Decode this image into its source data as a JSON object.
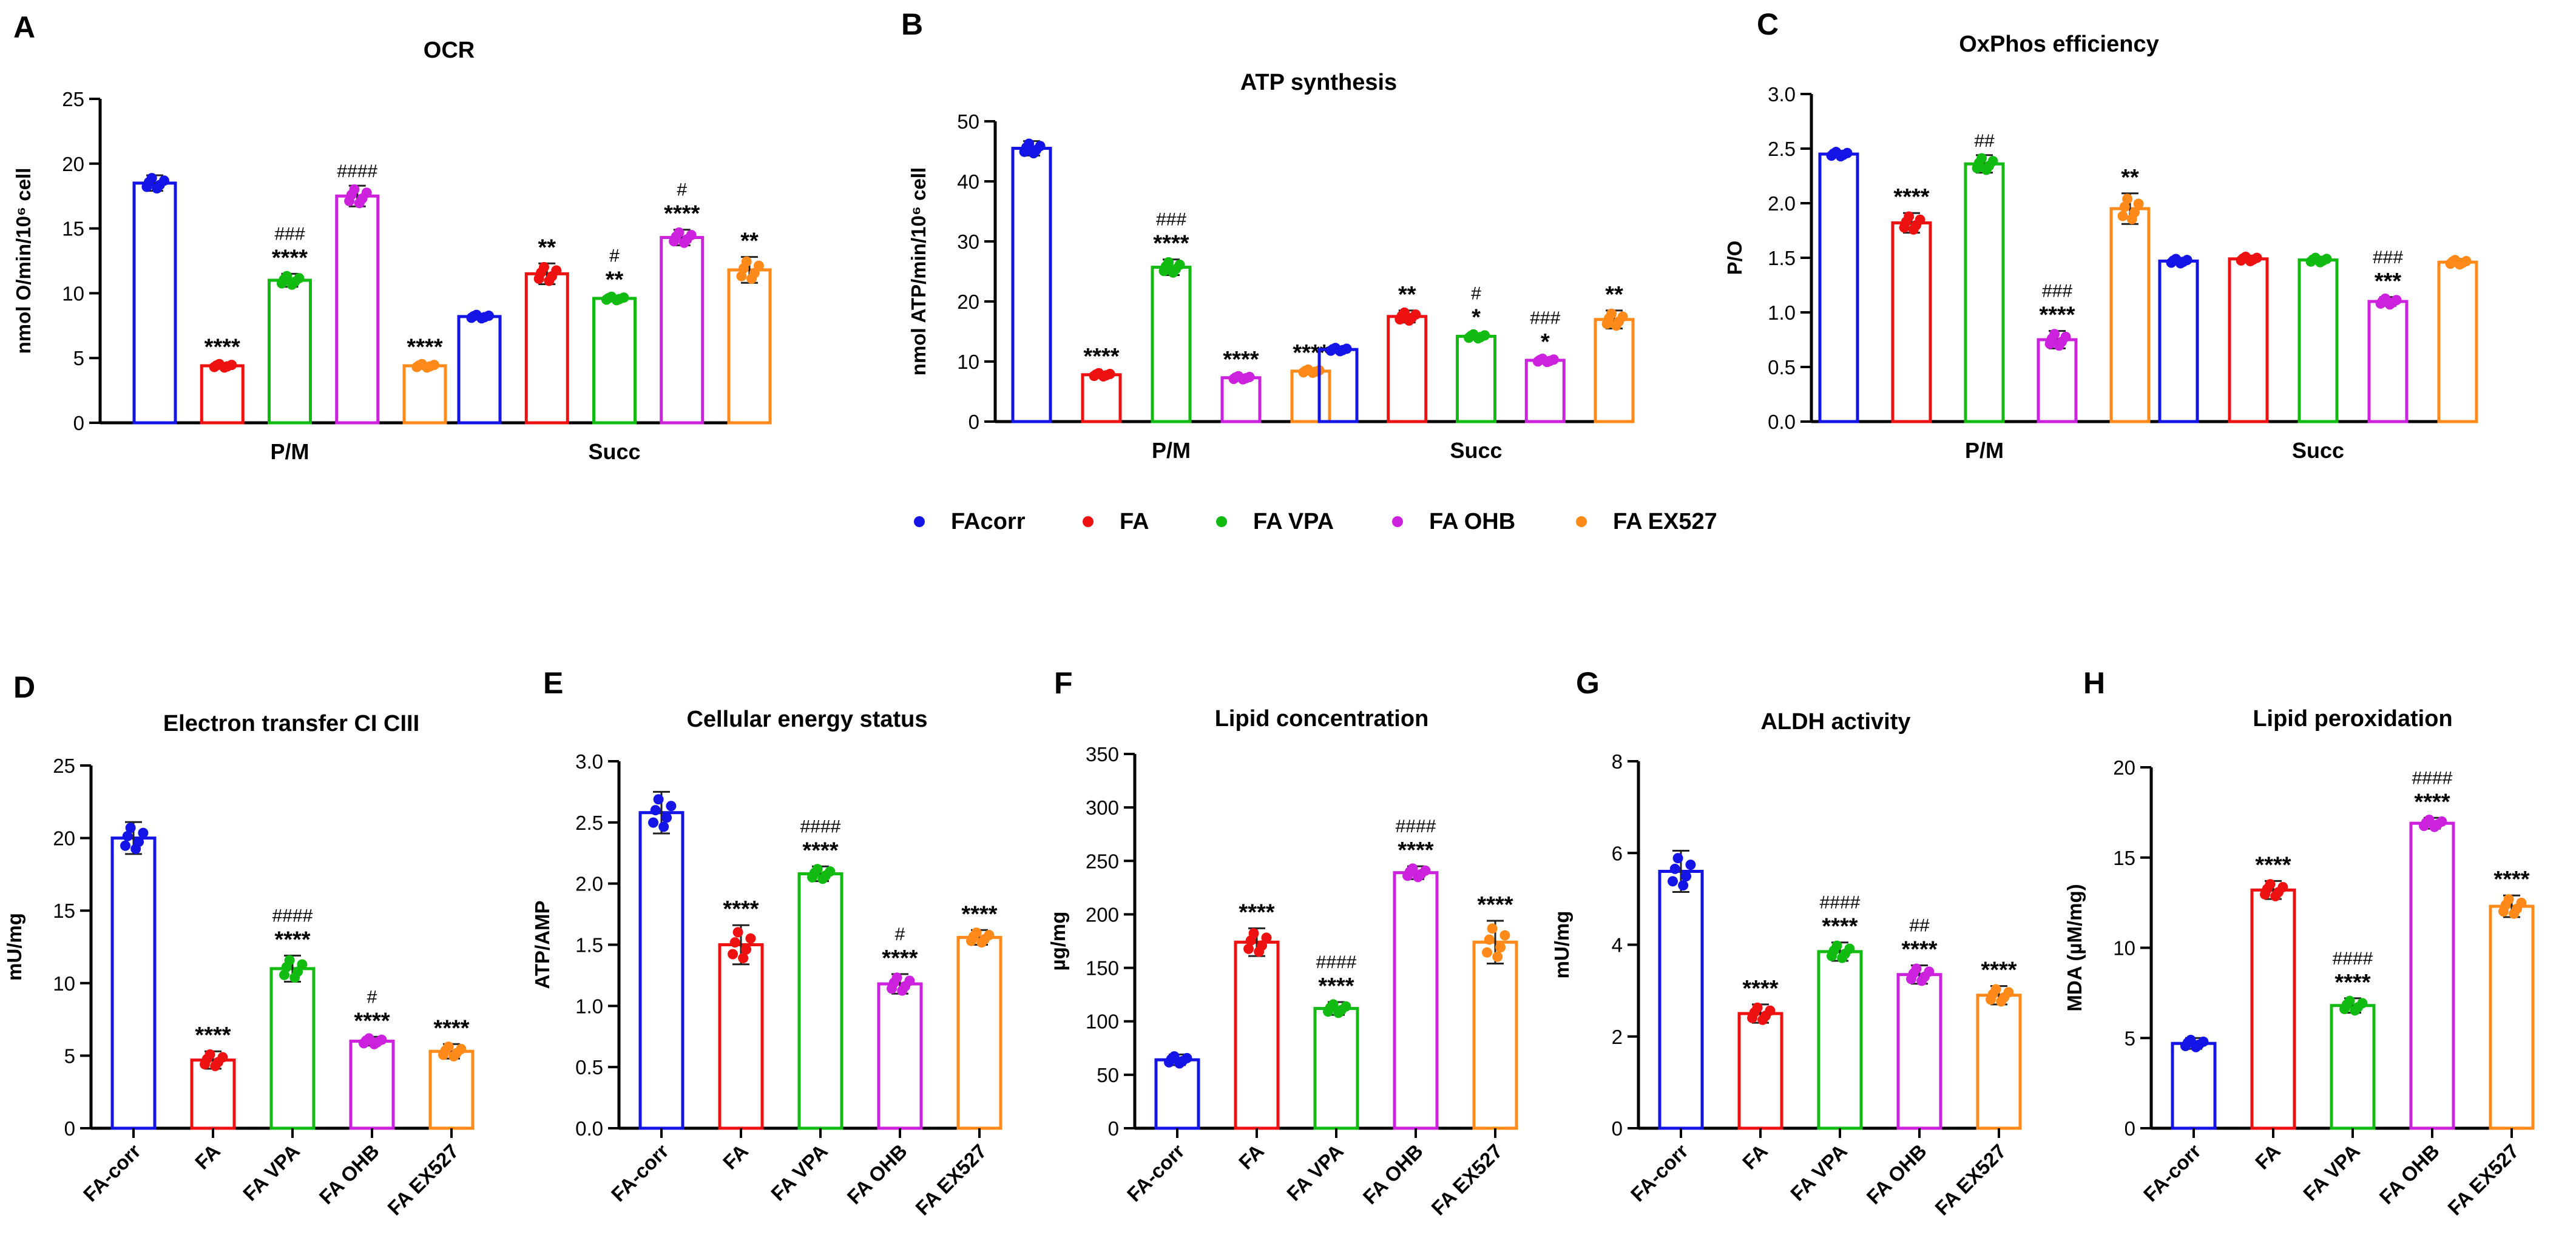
{
  "figure": {
    "legend": [
      {
        "name": "FAcorr",
        "color": "#1414e6"
      },
      {
        "name": "FA",
        "color": "#ee1111"
      },
      {
        "name": "FA VPA",
        "color": "#11bb11"
      },
      {
        "name": "FA OHB",
        "color": "#cc22dd"
      },
      {
        "name": "FA EX527",
        "color": "#ff8a1a"
      }
    ]
  },
  "chart_data": [
    {
      "panel": "A",
      "type": "bar",
      "title": "OCR",
      "ylabel": "nmol O/min/10⁶ cell",
      "ylim": [
        0,
        25
      ],
      "yticks": [
        0,
        5,
        10,
        15,
        20,
        25
      ],
      "categories": [
        "P/M",
        "Succ"
      ],
      "series": [
        {
          "name": "FAcorr",
          "values": [
            18.5,
            8.2
          ],
          "sd": [
            0.6,
            0.2
          ],
          "marks": [
            [
              "",
              ""
            ],
            [
              "",
              ""
            ]
          ]
        },
        {
          "name": "FA",
          "values": [
            4.4,
            11.5
          ],
          "sd": [
            0.2,
            0.8
          ],
          "marks": [
            [
              "****",
              ""
            ],
            [
              "**",
              ""
            ]
          ]
        },
        {
          "name": "FA VPA",
          "values": [
            11.0,
            9.6
          ],
          "sd": [
            0.5,
            0.2
          ],
          "marks": [
            [
              "****",
              "###"
            ],
            [
              "**",
              "#"
            ]
          ]
        },
        {
          "name": "FA OHB",
          "values": [
            17.5,
            14.3
          ],
          "sd": [
            0.8,
            0.6
          ],
          "marks": [
            [
              "",
              "####"
            ],
            [
              "****",
              "#"
            ]
          ]
        },
        {
          "name": "FA EX527",
          "values": [
            4.4,
            11.8
          ],
          "sd": [
            0.2,
            1.0
          ],
          "marks": [
            [
              "****",
              ""
            ],
            [
              "**",
              ""
            ]
          ]
        }
      ]
    },
    {
      "panel": "B",
      "type": "bar",
      "title": "ATP synthesis",
      "ylabel": "nmol ATP/min/10⁶ cell",
      "ylim": [
        0,
        50
      ],
      "yticks": [
        0,
        10,
        20,
        30,
        40,
        50
      ],
      "categories": [
        "P/M",
        "Succ"
      ],
      "series": [
        {
          "name": "FAcorr",
          "values": [
            45.5,
            12.0
          ],
          "sd": [
            1.2,
            0.4
          ],
          "marks": [
            [
              "",
              ""
            ],
            [
              "",
              ""
            ]
          ]
        },
        {
          "name": "FA",
          "values": [
            7.8,
            17.5
          ],
          "sd": [
            0.4,
            1.0
          ],
          "marks": [
            [
              "****",
              ""
            ],
            [
              "**",
              ""
            ]
          ]
        },
        {
          "name": "FA VPA",
          "values": [
            25.7,
            14.2
          ],
          "sd": [
            1.3,
            0.5
          ],
          "marks": [
            [
              "****",
              "###"
            ],
            [
              "*",
              "#"
            ]
          ]
        },
        {
          "name": "FA OHB",
          "values": [
            7.3,
            10.2
          ],
          "sd": [
            0.4,
            0.4
          ],
          "marks": [
            [
              "****",
              ""
            ],
            [
              "*",
              "###"
            ]
          ]
        },
        {
          "name": "FA EX527",
          "values": [
            8.4,
            17.0
          ],
          "sd": [
            0.4,
            1.5
          ],
          "marks": [
            [
              "****",
              ""
            ],
            [
              "**",
              ""
            ]
          ]
        }
      ]
    },
    {
      "panel": "C",
      "type": "bar",
      "title": "OxPhos efficiency",
      "ylabel": "P/O",
      "ylim": [
        0,
        3.0
      ],
      "yticks": [
        0.0,
        0.5,
        1.0,
        1.5,
        2.0,
        2.5,
        3.0
      ],
      "categories": [
        "P/M",
        "Succ"
      ],
      "series": [
        {
          "name": "FAcorr",
          "values": [
            2.45,
            1.47
          ],
          "sd": [
            0.03,
            0.03
          ],
          "marks": [
            [
              "",
              ""
            ],
            [
              "",
              ""
            ]
          ]
        },
        {
          "name": "FA",
          "values": [
            1.82,
            1.49
          ],
          "sd": [
            0.09,
            0.03
          ],
          "marks": [
            [
              "****",
              ""
            ],
            [
              "",
              ""
            ]
          ]
        },
        {
          "name": "FA VPA",
          "values": [
            2.36,
            1.48
          ],
          "sd": [
            0.08,
            0.03
          ],
          "marks": [
            [
              "",
              "##"
            ],
            [
              "",
              ""
            ]
          ]
        },
        {
          "name": "FA OHB",
          "values": [
            0.75,
            1.1
          ],
          "sd": [
            0.08,
            0.04
          ],
          "marks": [
            [
              "****",
              "###"
            ],
            [
              "***",
              "###"
            ]
          ]
        },
        {
          "name": "FA EX527",
          "values": [
            1.95,
            1.46
          ],
          "sd": [
            0.14,
            0.03
          ],
          "marks": [
            [
              "**",
              ""
            ],
            [
              "",
              ""
            ]
          ]
        }
      ]
    },
    {
      "panel": "D",
      "type": "bar",
      "title": "Electron transfer CI CIII",
      "ylabel": "mU/mg",
      "ylim": [
        0,
        25
      ],
      "yticks": [
        0,
        5,
        10,
        15,
        20,
        25
      ],
      "categories": [
        "FA-corr",
        "FA",
        "FA VPA",
        "FA OHB",
        "FA EX527"
      ],
      "values": [
        20.0,
        4.7,
        11.0,
        6.0,
        5.3
      ],
      "sd": [
        1.1,
        0.6,
        0.9,
        0.3,
        0.5
      ],
      "marks": [
        [
          "",
          ""
        ],
        [
          "****",
          ""
        ],
        [
          "****",
          "####"
        ],
        [
          "****",
          "#"
        ],
        [
          "****",
          ""
        ]
      ]
    },
    {
      "panel": "E",
      "type": "bar",
      "title": "Cellular energy status",
      "ylabel": "ATP/AMP",
      "ylim": [
        0,
        3.0
      ],
      "yticks": [
        0.0,
        0.5,
        1.0,
        1.5,
        2.0,
        2.5,
        3.0
      ],
      "categories": [
        "FA-corr",
        "FA",
        "FA VPA",
        "FA OHB",
        "FA EX527"
      ],
      "values": [
        2.58,
        1.5,
        2.08,
        1.18,
        1.56
      ],
      "sd": [
        0.17,
        0.16,
        0.06,
        0.08,
        0.06
      ],
      "marks": [
        [
          "",
          ""
        ],
        [
          "****",
          ""
        ],
        [
          "****",
          "####"
        ],
        [
          "****",
          "#"
        ],
        [
          "****",
          ""
        ]
      ]
    },
    {
      "panel": "F",
      "type": "bar",
      "title": "Lipid concentration",
      "ylabel": "µg/mg",
      "ylim": [
        0,
        350
      ],
      "yticks": [
        0,
        50,
        100,
        150,
        200,
        250,
        300,
        350
      ],
      "categories": [
        "FA-corr",
        "FA",
        "FA VPA",
        "FA OHB",
        "FA EX527"
      ],
      "values": [
        64,
        174,
        112,
        239,
        174
      ],
      "sd": [
        5,
        13,
        6,
        6,
        20
      ],
      "marks": [
        [
          "",
          ""
        ],
        [
          "****",
          ""
        ],
        [
          "****",
          "####"
        ],
        [
          "****",
          "####"
        ],
        [
          "****",
          ""
        ]
      ]
    },
    {
      "panel": "G",
      "type": "bar",
      "title": "ALDH activity",
      "ylabel": "mU/mg",
      "ylim": [
        0,
        8
      ],
      "yticks": [
        0,
        2,
        4,
        6,
        8
      ],
      "categories": [
        "FA-corr",
        "FA",
        "FA VPA",
        "FA OHB",
        "FA EX527"
      ],
      "values": [
        5.6,
        2.5,
        3.85,
        3.35,
        2.9
      ],
      "sd": [
        0.45,
        0.2,
        0.2,
        0.2,
        0.2
      ],
      "marks": [
        [
          "",
          ""
        ],
        [
          "****",
          ""
        ],
        [
          "****",
          "####"
        ],
        [
          "****",
          "##"
        ],
        [
          "****",
          ""
        ]
      ]
    },
    {
      "panel": "H",
      "type": "bar",
      "title": "Lipid peroxidation",
      "ylabel": "MDA (µM/mg)",
      "ylim": [
        0,
        20
      ],
      "yticks": [
        0,
        5,
        10,
        15,
        20
      ],
      "categories": [
        "FA-corr",
        "FA",
        "FA VPA",
        "FA OHB",
        "FA EX527"
      ],
      "values": [
        4.7,
        13.2,
        6.8,
        16.9,
        12.3
      ],
      "sd": [
        0.3,
        0.5,
        0.4,
        0.3,
        0.6
      ],
      "marks": [
        [
          "",
          ""
        ],
        [
          "****",
          ""
        ],
        [
          "****",
          "####"
        ],
        [
          "****",
          "####"
        ],
        [
          "****",
          ""
        ]
      ]
    }
  ]
}
